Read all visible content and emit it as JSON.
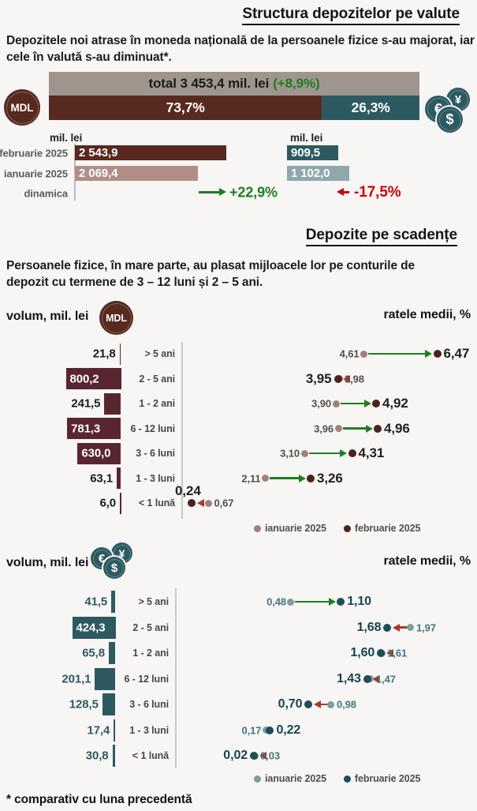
{
  "page": {
    "intro1": "Depozitele noi atrase în moneda națională de la persoanele fizice s-au majorat, iar cele în valută s-au diminuat*.",
    "intro2": "Persoanele fizice, în mare parte, au plasat mijloacele lor pe conturile de depozit cu termene de 3 – 12 luni și 2 – 5 ani.",
    "footnote": "* comparativ cu luna precedentă"
  },
  "icons": {
    "mdl": "MDL",
    "euro": "€",
    "yen": "¥",
    "dollar": "$"
  },
  "colors": {
    "background": "#f7f6f4",
    "text_dark": "#1b1b1b",
    "total_gray": "#9e968e",
    "mdl_primary": "#58291f",
    "mdl_bar": "#592531",
    "mdl_light": "#b18e88",
    "mdl_dot_jan": "#a1817a",
    "mdl_dot_feb": "#4c221b",
    "mdl_rate_jan_text": "#4f4f4f",
    "mdl_rate_feb_text": "#1f1f1f",
    "teal_primary": "#2d5a61",
    "teal_light": "#8fa8ab",
    "teal_dot_jan": "#7d9da0",
    "teal_dot_feb": "#1c4e57",
    "teal_rate_jan_text": "#41767d",
    "teal_rate_feb_text": "#16444d",
    "green": "#1f7e1f",
    "red": "#d00000",
    "arrow_red": "#a93a28",
    "gray_label": "#5a5a5a",
    "category_text": "#474747",
    "divider": "#c9c9c9"
  },
  "chart_data": [
    {
      "id": "currency_structure",
      "type": "bar",
      "title": "Structura depozitelor pe valute",
      "total_label": "total 3 453,4 mil. lei",
      "total_change_label": "(+8,9%)",
      "total_value": 3453.4,
      "total_change_pct": 8.9,
      "segments": [
        {
          "name": "MDL",
          "share_pct": 73.7,
          "label": "73,7%"
        },
        {
          "name": "valută",
          "share_pct": 26.3,
          "label": "26,3%"
        }
      ],
      "mdl": {
        "unit": "mil. lei",
        "categories": [
          "februarie 2025",
          "ianuarie 2025"
        ],
        "values": [
          2543.9,
          2069.4
        ],
        "value_labels": [
          "2 543,9",
          "2 069,4"
        ],
        "dynamics_label": "dinamica",
        "change_label": "+22,9%",
        "change_pct": 22.9,
        "direction": "up"
      },
      "fx": {
        "unit": "mil. lei",
        "categories": [
          "februarie 2025",
          "ianuarie 2025"
        ],
        "values": [
          909.5,
          1102.0
        ],
        "value_labels": [
          "909,5",
          "1 102,0"
        ],
        "dynamics_label": "dinamica",
        "change_label": "-17,5%",
        "change_pct": -17.5,
        "direction": "down"
      }
    },
    {
      "id": "maturity_mdl",
      "type": "bar+dumbbell",
      "title": "Depozite pe scadențe",
      "volume_title": "volum, mil. lei",
      "rates_title": "ratele medii, %",
      "categories": [
        "> 5 ani",
        "2 - 5 ani",
        "1 - 2 ani",
        "6 - 12 luni",
        "3 - 6 luni",
        "1 - 3 luni",
        "< 1 lună"
      ],
      "volumes": [
        21.8,
        800.2,
        241.5,
        781.3,
        630.0,
        63.1,
        6.0
      ],
      "volume_labels": [
        "21,8",
        "800,2",
        "241,5",
        "781,3",
        "630,0",
        "63,1",
        "6,0"
      ],
      "rates_ianuarie": [
        4.61,
        3.98,
        3.9,
        3.96,
        3.1,
        2.11,
        0.67
      ],
      "rates_februarie": [
        6.47,
        3.95,
        4.92,
        4.96,
        4.31,
        3.26,
        0.24
      ],
      "rate_labels_ianuarie": [
        "4,61",
        "3,98",
        "3,90",
        "3,96",
        "3,10",
        "2,11",
        "0,67"
      ],
      "rate_labels_februarie": [
        "6,47",
        "3,95",
        "4,92",
        "4,96",
        "4,31",
        "3,26",
        "0,24"
      ],
      "legend": [
        "ianuarie 2025",
        "februarie 2025"
      ]
    },
    {
      "id": "maturity_fx",
      "type": "bar+dumbbell",
      "volume_title": "volum, mil. lei",
      "rates_title": "ratele medii, %",
      "categories": [
        "> 5 ani",
        "2 - 5 ani",
        "1 - 2 ani",
        "6 - 12 luni",
        "3 - 6 luni",
        "1 - 3 luni",
        "< 1 lună"
      ],
      "volumes": [
        41.5,
        424.3,
        65.8,
        201.1,
        128.5,
        17.4,
        30.8
      ],
      "volume_labels": [
        "41,5",
        "424,3",
        "65,8",
        "201,1",
        "128,5",
        "17,4",
        "30,8"
      ],
      "rates_ianuarie": [
        0.48,
        1.97,
        1.61,
        1.47,
        0.98,
        0.17,
        0.03
      ],
      "rates_februarie": [
        1.1,
        1.68,
        1.6,
        1.43,
        0.7,
        0.22,
        0.02
      ],
      "rate_labels_ianuarie": [
        "0,48",
        "1,97",
        "1,61",
        "1,47",
        "0,98",
        "0,17",
        "0,03"
      ],
      "rate_labels_februarie": [
        "1,10",
        "1,68",
        "1,60",
        "1,43",
        "0,70",
        "0,22",
        "0,02"
      ],
      "legend": [
        "ianuarie 2025",
        "februarie 2025"
      ]
    }
  ]
}
